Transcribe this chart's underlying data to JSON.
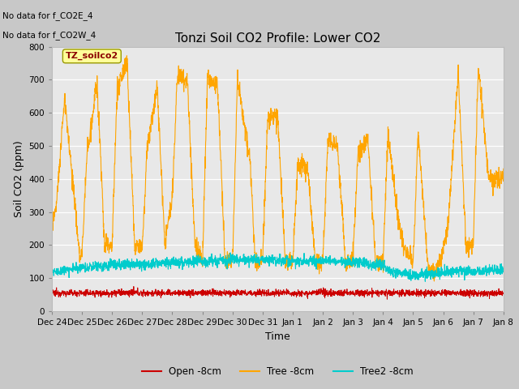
{
  "title": "Tonzi Soil CO2 Profile: Lower CO2",
  "xlabel": "Time",
  "ylabel": "Soil CO2 (ppm)",
  "ylim": [
    0,
    800
  ],
  "yticks": [
    0,
    100,
    200,
    300,
    400,
    500,
    600,
    700,
    800
  ],
  "fig_bg_color": "#c8c8c8",
  "plot_bg_color": "#e8e8e8",
  "annotations": [
    "No data for f_CO2E_4",
    "No data for f_CO2W_4"
  ],
  "legend_entries": [
    "Open -8cm",
    "Tree -8cm",
    "Tree2 -8cm"
  ],
  "legend_colors": [
    "#cc0000",
    "#ffa500",
    "#00cccc"
  ],
  "box_label": "TZ_soilco2",
  "box_color": "#ffff99",
  "box_border": "#999900",
  "day_labels": [
    "Dec 24",
    "Dec 25",
    "Dec 26",
    "Dec 27",
    "Dec 28",
    "Dec 29",
    "Dec 30",
    "Dec 31",
    "Jan 1",
    "Jan 2",
    "Jan 3",
    "Jan 4",
    "Jan 5",
    "Jan 6",
    "Jan 7",
    "Jan 8"
  ],
  "total_hours": 360,
  "key_times_tree": [
    0,
    4,
    10,
    18,
    22,
    24,
    28,
    36,
    42,
    48,
    52,
    60,
    66,
    72,
    76,
    84,
    90,
    96,
    100,
    108,
    114,
    120,
    124,
    132,
    138,
    144,
    148,
    158,
    162,
    168,
    172,
    180,
    186,
    192,
    196,
    204,
    210,
    216,
    220,
    228,
    234,
    240,
    244,
    252,
    258,
    264,
    268,
    276,
    282,
    288,
    292,
    300,
    306,
    312,
    316,
    324,
    330,
    336,
    340,
    348,
    354,
    360
  ],
  "key_vals_tree": [
    250,
    340,
    640,
    340,
    170,
    170,
    480,
    690,
    200,
    200,
    670,
    750,
    200,
    200,
    490,
    680,
    200,
    340,
    710,
    700,
    200,
    150,
    700,
    690,
    150,
    150,
    700,
    460,
    150,
    150,
    580,
    590,
    150,
    150,
    450,
    430,
    150,
    150,
    520,
    490,
    150,
    150,
    480,
    520,
    150,
    150,
    540,
    280,
    180,
    150,
    540,
    120,
    120,
    180,
    260,
    730,
    200,
    200,
    740,
    410,
    400,
    400
  ],
  "key_times_tree2": [
    0,
    24,
    48,
    72,
    96,
    120,
    144,
    168,
    192,
    216,
    240,
    264,
    270,
    288,
    312,
    336,
    360
  ],
  "key_vals_tree2": [
    115,
    133,
    140,
    143,
    148,
    150,
    155,
    155,
    152,
    152,
    148,
    140,
    120,
    110,
    118,
    120,
    125
  ],
  "open_base": 55,
  "open_noise": 5,
  "tree_noise": 15,
  "tree2_noise": 8
}
